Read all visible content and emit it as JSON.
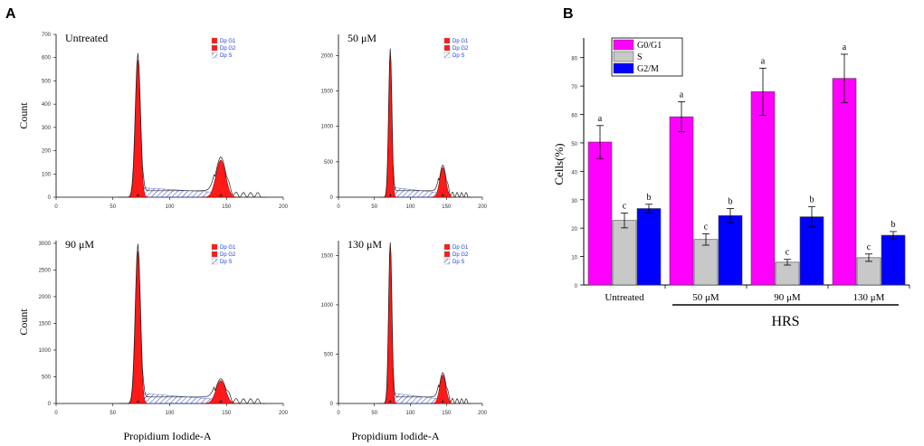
{
  "panels": {
    "a": "A",
    "b": "B"
  },
  "colors": {
    "g1_fill": "#ff1a1a",
    "s_hatch": "#2a3fcc",
    "magenta": "#ff00ff",
    "grey": "#c8c8c8",
    "blue": "#0000ff",
    "legend_text": "#1a3fd6"
  },
  "histograms": [
    {
      "label": "Untreated",
      "ylabel": "Count",
      "yticks": [
        "0",
        "100",
        "200",
        "300",
        "400",
        "500",
        "600",
        "700"
      ],
      "xticks": [
        "0",
        "50",
        "100",
        "150",
        "200"
      ],
      "legend": [
        "Dp G1",
        "Dp G2",
        "Dp S"
      ],
      "g1_peak": 590,
      "g2_peak": 160,
      "ymax": 700,
      "markers": [
        "▲",
        "▲"
      ]
    },
    {
      "label": "50 μM",
      "ylabel": "",
      "yticks": [
        "0",
        "500",
        "1000",
        "1500",
        "2000"
      ],
      "xticks": [
        "0",
        "50",
        "100",
        "150",
        "200"
      ],
      "legend": [
        "Dp G1",
        "Dp G2",
        "Dp S"
      ],
      "g1_peak": 2000,
      "g2_peak": 420,
      "ymax": 2300,
      "markers": [
        "▲",
        "▲"
      ]
    },
    {
      "label": "90 μM",
      "ylabel": "Count",
      "yticks": [
        "0",
        "500",
        "1000",
        "1500",
        "2000",
        "2500",
        "3000"
      ],
      "xticks": [
        "0",
        "50",
        "100",
        "150",
        "200"
      ],
      "legend": [
        "Dp G1",
        "Dp G2",
        "Dp S"
      ],
      "g1_peak": 2850,
      "g2_peak": 430,
      "ymax": 3050,
      "markers": [
        "▲",
        "▲"
      ]
    },
    {
      "label": "130 μM",
      "ylabel": "",
      "yticks": [
        "0",
        "500",
        "1000",
        "1500"
      ],
      "xticks": [
        "0",
        "50",
        "100",
        "150",
        "200"
      ],
      "legend": [
        "Dp G1",
        "Dp G2",
        "Dp S"
      ],
      "g1_peak": 1580,
      "g2_peak": 290,
      "ymax": 1650,
      "markers": [
        "▲",
        "▲"
      ]
    }
  ],
  "xlabel": "Propidium Iodide-A",
  "chart_data": [
    {
      "type": "bar",
      "title": "",
      "xlabel": "",
      "ylabel": "Cells(%)",
      "ylim": [
        0,
        85
      ],
      "yticks": [
        "0",
        "10",
        "20",
        "30",
        "40",
        "50",
        "60",
        "70",
        "80"
      ],
      "categories": [
        "Untreated",
        "50 μM",
        "90 μM",
        "130 μM"
      ],
      "group_label": "HRS",
      "series": [
        {
          "name": "G0/G1",
          "values": [
            50.3,
            59.2,
            68.0,
            72.7
          ],
          "errors": [
            5.8,
            5.3,
            8.3,
            8.5
          ],
          "letters": [
            "a",
            "a",
            "a",
            "a"
          ]
        },
        {
          "name": "S",
          "values": [
            22.7,
            16.0,
            8.0,
            9.6
          ],
          "errors": [
            2.6,
            2.0,
            1.0,
            1.3
          ],
          "letters": [
            "c",
            "c",
            "c",
            "c"
          ]
        },
        {
          "name": "G2/M",
          "values": [
            26.9,
            24.4,
            24.0,
            17.5
          ],
          "errors": [
            1.5,
            2.5,
            3.6,
            1.3
          ],
          "letters": [
            "b",
            "b",
            "b",
            "b"
          ]
        }
      ]
    }
  ]
}
